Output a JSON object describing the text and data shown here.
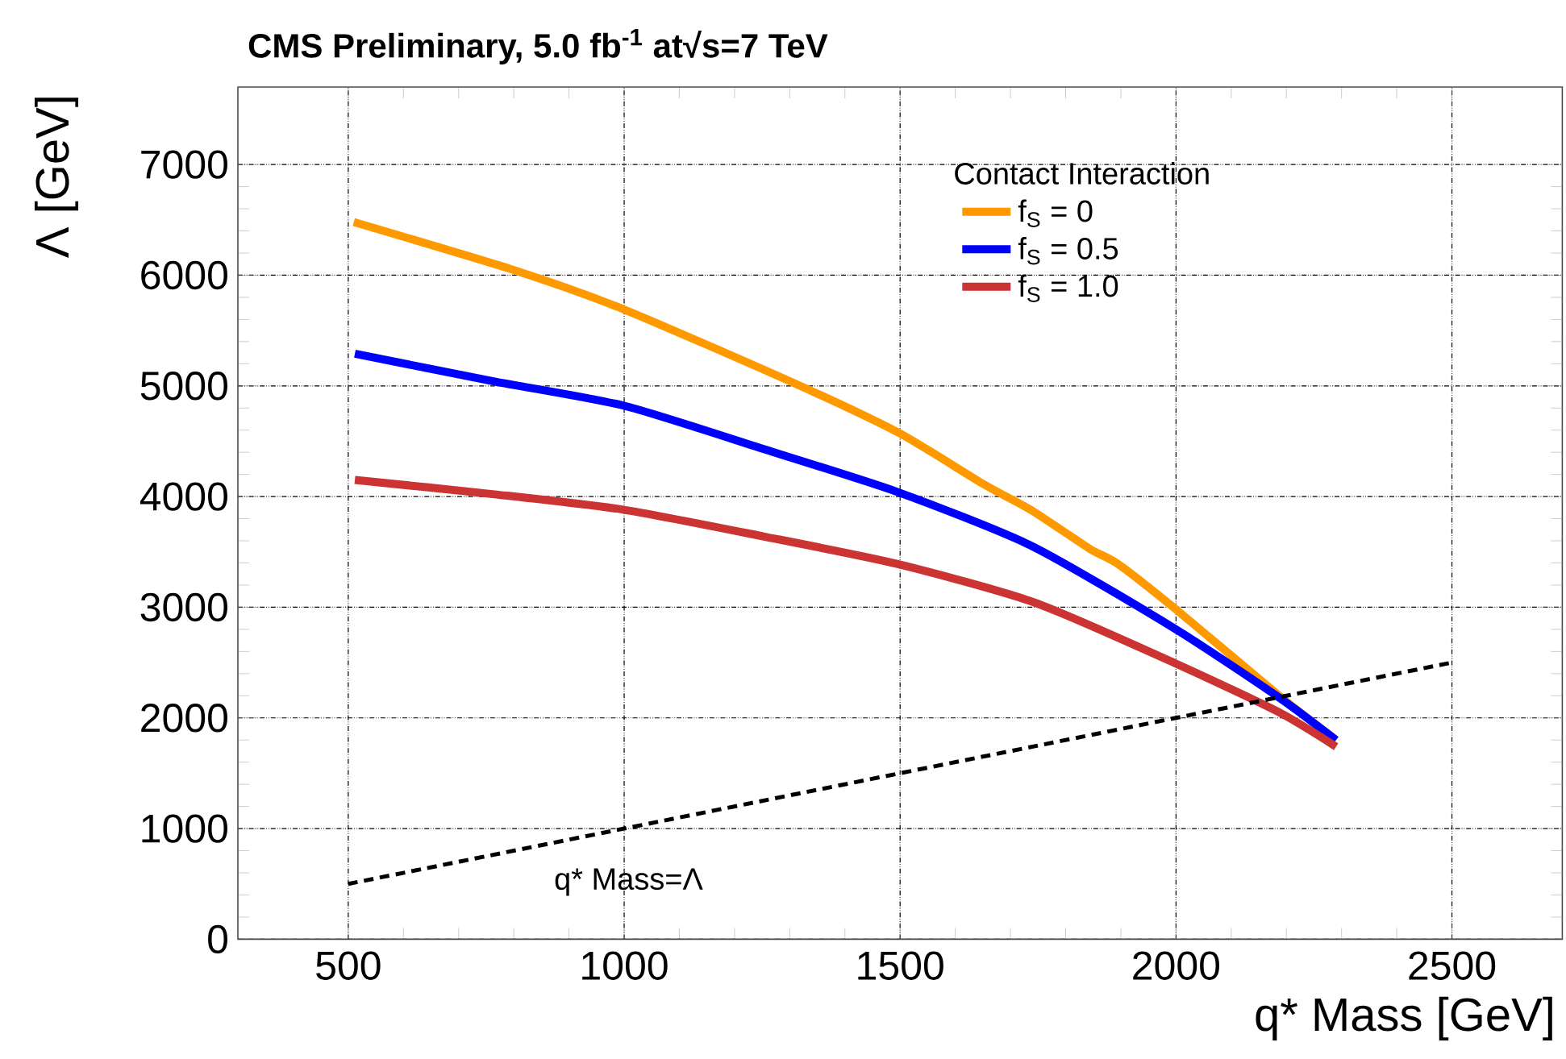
{
  "chart_data": {
    "type": "line",
    "title": "CMS Preliminary, 5.0 fb$^{-1}$ at√s=7 TeV",
    "xlabel": "q* Mass [GeV]",
    "ylabel": "Λ [GeV]",
    "legend_title": "Contact Interaction",
    "xlim": [
      300,
      2700
    ],
    "ylim": [
      0,
      7700
    ],
    "xticks": [
      500,
      1000,
      1500,
      2000,
      2500
    ],
    "yticks": [
      0,
      1000,
      2000,
      3000,
      4000,
      5000,
      6000,
      7000
    ],
    "grid": true,
    "legend": "top right",
    "series": [
      {
        "name": "f$_{S}$ = 0",
        "color": "#ff9900",
        "x": [
          510,
          804,
          1000,
          1301,
          1496,
          1652,
          1740,
          1843,
          1895,
          2000,
          2187,
          2290
        ],
        "values": [
          6480,
          6040,
          5690,
          5040,
          4580,
          4110,
          3870,
          3530,
          3390,
          2980,
          2200,
          1800
        ]
      },
      {
        "name": "f$_{S}$ = 0.5",
        "color": "#0000ff",
        "x": [
          512,
          765,
          1000,
          1252,
          1496,
          1740,
          2000,
          2188,
          2290
        ],
        "values": [
          5290,
          5040,
          4820,
          4430,
          4040,
          3550,
          2800,
          2180,
          1800
        ]
      },
      {
        "name": "f$_{S}$ = 1.0",
        "color": "#cc3333",
        "x": [
          512,
          765,
          1000,
          1252,
          1496,
          1745,
          2000,
          2187,
          2290
        ],
        "values": [
          4150,
          4020,
          3880,
          3640,
          3390,
          3040,
          2490,
          2050,
          1740
        ]
      },
      {
        "color": "#000000",
        "line_style": "dashed",
        "x": [
          500,
          2500
        ],
        "values": [
          500,
          2500
        ]
      }
    ],
    "annotations": [
      "q* Mass=Λ"
    ]
  }
}
